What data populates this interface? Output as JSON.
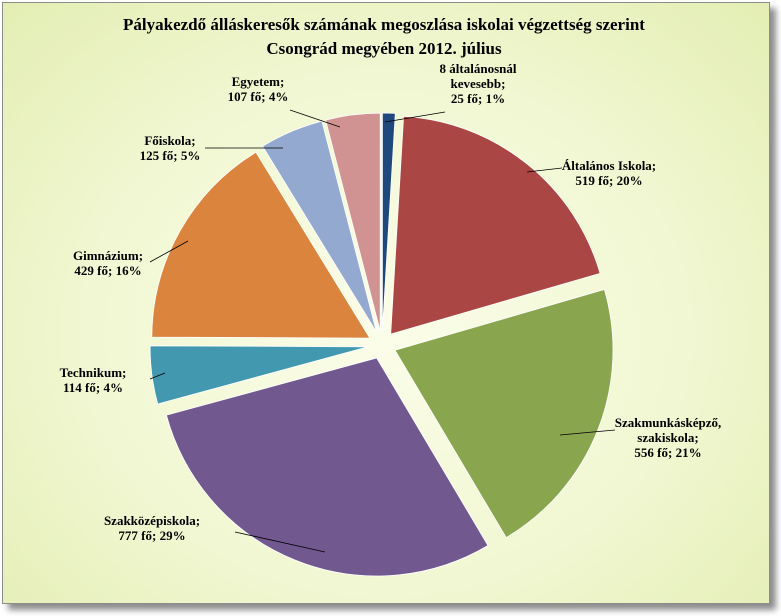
{
  "chart_data": {
    "type": "pie",
    "title": [
      "Pályakezdő álláskeresők számának megoszlása iskolai végzettség szerint",
      "Csongrád megyében 2012. július"
    ],
    "exploded": true,
    "slices": [
      {
        "category": [
          "8 általánosnál",
          "kevesebb;"
        ],
        "value_text": "25 fő; 1%",
        "value": 25,
        "percent": 1,
        "color": "#1f497d"
      },
      {
        "category": [
          "Általános Iskola;"
        ],
        "value_text": "519 fő; 20%",
        "value": 519,
        "percent": 20,
        "color": "#aa4643"
      },
      {
        "category": [
          "Szakmunkásképző,",
          "szakiskola;"
        ],
        "value_text": "556 fő; 21%",
        "value": 556,
        "percent": 21,
        "color": "#89a54e"
      },
      {
        "category": [
          "Szakközépiskola;"
        ],
        "value_text": "777 fő; 29%",
        "value": 777,
        "percent": 29,
        "color": "#71588f"
      },
      {
        "category": [
          "Technikum;"
        ],
        "value_text": "114 fő; 4%",
        "value": 114,
        "percent": 4,
        "color": "#4198af"
      },
      {
        "category": [
          "Gimnázium;"
        ],
        "value_text": "429 fő; 16%",
        "value": 429,
        "percent": 16,
        "color": "#db843d"
      },
      {
        "category": [
          "Főiskola;"
        ],
        "value_text": "125 fő; 5%",
        "value": 125,
        "percent": 5,
        "color": "#93a9cf"
      },
      {
        "category": [
          "Egyetem;"
        ],
        "value_text": "107 fő; 4%",
        "value": 107,
        "percent": 4,
        "color": "#d19392"
      }
    ]
  }
}
